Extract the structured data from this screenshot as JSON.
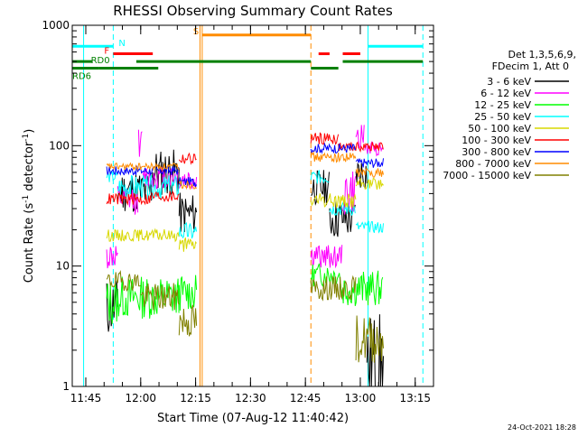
{
  "chart_data": {
    "type": "line",
    "title": "RHESSI Observing Summary Count Rates",
    "xlabel": "Start Time (07-Aug-12 11:40:42)",
    "ylabel_parts": [
      "Count Rate (s",
      "-1",
      " detector",
      "-1",
      ")"
    ],
    "yscale": "log",
    "ylim": [
      1,
      1000
    ],
    "xlim": [
      11.6883,
      13.3333
    ],
    "x_ticks": [
      {
        "t": 11.75,
        "label": "11:45"
      },
      {
        "t": 12.0,
        "label": "12:00"
      },
      {
        "t": 12.25,
        "label": "12:15"
      },
      {
        "t": 12.5,
        "label": "12:30"
      },
      {
        "t": 12.75,
        "label": "12:45"
      },
      {
        "t": 13.0,
        "label": "13:00"
      },
      {
        "t": 13.25,
        "label": "13:15"
      }
    ],
    "y_ticks": [
      {
        "v": 1,
        "label": "1"
      },
      {
        "v": 10,
        "label": "10"
      },
      {
        "v": 100,
        "label": "100"
      },
      {
        "v": 1000,
        "label": "1000"
      }
    ],
    "legend_header": [
      "Det 1,3,5,6,9,",
      "FDecim 1, Att 0"
    ],
    "series": [
      {
        "name": "3 - 6 keV",
        "color": "#000000",
        "seed": 11,
        "segments": [
          {
            "start": 11.845,
            "end": 11.895,
            "level": 4.5,
            "noise": 0.25
          },
          {
            "start": 11.895,
            "end": 12.05,
            "level": 42,
            "noise": 0.18
          },
          {
            "start": 12.05,
            "end": 12.175,
            "level": 60,
            "noise": 0.2
          },
          {
            "start": 12.175,
            "end": 12.255,
            "level": 27,
            "noise": 0.18
          },
          {
            "start": 12.775,
            "end": 12.86,
            "level": 45,
            "noise": 0.15
          },
          {
            "start": 12.86,
            "end": 12.98,
            "level": 25,
            "noise": 0.18
          },
          {
            "start": 12.98,
            "end": 13.03,
            "level": 60,
            "noise": 0.15
          },
          {
            "start": 13.03,
            "end": 13.105,
            "level": 1.5,
            "noise": 0.45
          }
        ]
      },
      {
        "name": "6 - 12 keV",
        "color": "#ff00ff",
        "seed": 12,
        "segments": [
          {
            "start": 11.845,
            "end": 11.895,
            "level": 12,
            "noise": 0.12
          },
          {
            "start": 11.895,
            "end": 11.99,
            "level": 35,
            "noise": 0.12
          },
          {
            "start": 11.99,
            "end": 12.01,
            "level": 105,
            "noise": 0.12
          },
          {
            "start": 12.01,
            "end": 12.175,
            "level": 55,
            "noise": 0.1
          },
          {
            "start": 12.175,
            "end": 12.255,
            "level": 52,
            "noise": 0.1
          },
          {
            "start": 12.775,
            "end": 12.92,
            "level": 12,
            "noise": 0.1
          },
          {
            "start": 12.92,
            "end": 12.98,
            "level": 40,
            "noise": 0.2
          },
          {
            "start": 12.98,
            "end": 13.02,
            "level": 120,
            "noise": 0.1
          },
          {
            "start": 13.02,
            "end": 13.105,
            "level": 95,
            "noise": 0.06
          }
        ]
      },
      {
        "name": "12 - 25 keV",
        "color": "#00ff00",
        "seed": 13,
        "segments": [
          {
            "start": 11.845,
            "end": 11.895,
            "level": 5,
            "noise": 0.2
          },
          {
            "start": 11.895,
            "end": 12.175,
            "level": 5.5,
            "noise": 0.18
          },
          {
            "start": 12.175,
            "end": 12.255,
            "level": 6,
            "noise": 0.15
          },
          {
            "start": 12.775,
            "end": 12.91,
            "level": 8.5,
            "noise": 0.1
          },
          {
            "start": 12.91,
            "end": 13.105,
            "level": 6.5,
            "noise": 0.15
          }
        ]
      },
      {
        "name": "25 - 50 keV",
        "color": "#00ffff",
        "seed": 14,
        "segments": [
          {
            "start": 11.845,
            "end": 11.895,
            "level": 55,
            "noise": 0.05
          },
          {
            "start": 11.895,
            "end": 12.175,
            "level": 45,
            "noise": 0.1
          },
          {
            "start": 12.175,
            "end": 12.255,
            "level": 19,
            "noise": 0.08
          },
          {
            "start": 12.775,
            "end": 12.86,
            "level": 55,
            "noise": 0.06
          },
          {
            "start": 12.86,
            "end": 12.98,
            "level": 30,
            "noise": 0.06
          },
          {
            "start": 12.98,
            "end": 13.105,
            "level": 21,
            "noise": 0.05
          }
        ]
      },
      {
        "name": "50 - 100 keV",
        "color": "#d8d800",
        "seed": 15,
        "segments": [
          {
            "start": 11.845,
            "end": 12.175,
            "level": 18,
            "noise": 0.05
          },
          {
            "start": 12.175,
            "end": 12.255,
            "level": 15,
            "noise": 0.06
          },
          {
            "start": 12.775,
            "end": 12.98,
            "level": 35,
            "noise": 0.06
          },
          {
            "start": 12.98,
            "end": 13.105,
            "level": 48,
            "noise": 0.05
          }
        ]
      },
      {
        "name": "100 - 300 keV",
        "color": "#ff0000",
        "seed": 16,
        "segments": [
          {
            "start": 11.845,
            "end": 12.05,
            "level": 36,
            "noise": 0.05
          },
          {
            "start": 12.05,
            "end": 12.175,
            "level": 38,
            "noise": 0.05
          },
          {
            "start": 12.175,
            "end": 12.255,
            "level": 78,
            "noise": 0.05
          },
          {
            "start": 12.775,
            "end": 12.9,
            "level": 115,
            "noise": 0.05
          },
          {
            "start": 12.9,
            "end": 13.105,
            "level": 98,
            "noise": 0.04
          }
        ]
      },
      {
        "name": "300 - 800 keV",
        "color": "#0000ff",
        "seed": 17,
        "segments": [
          {
            "start": 11.845,
            "end": 12.175,
            "level": 62,
            "noise": 0.04
          },
          {
            "start": 12.175,
            "end": 12.255,
            "level": 50,
            "noise": 0.04
          },
          {
            "start": 12.775,
            "end": 12.98,
            "level": 95,
            "noise": 0.04
          },
          {
            "start": 12.98,
            "end": 13.105,
            "level": 72,
            "noise": 0.04
          }
        ]
      },
      {
        "name": "800 - 7000 keV",
        "color": "#ff8c00",
        "seed": 18,
        "segments": [
          {
            "start": 11.845,
            "end": 12.175,
            "level": 67,
            "noise": 0.03
          },
          {
            "start": 12.175,
            "end": 12.255,
            "level": 48,
            "noise": 0.04
          },
          {
            "start": 12.775,
            "end": 12.98,
            "level": 80,
            "noise": 0.04
          },
          {
            "start": 12.98,
            "end": 13.105,
            "level": 60,
            "noise": 0.04
          }
        ]
      },
      {
        "name": "7000 - 15000 keV",
        "color": "#808000",
        "seed": 19,
        "segments": [
          {
            "start": 11.845,
            "end": 12.0,
            "level": 7.5,
            "noise": 0.08
          },
          {
            "start": 12.0,
            "end": 12.175,
            "level": 5.5,
            "noise": 0.12
          },
          {
            "start": 12.175,
            "end": 12.255,
            "level": 3.5,
            "noise": 0.15
          },
          {
            "start": 12.775,
            "end": 12.98,
            "level": 6.5,
            "noise": 0.1
          },
          {
            "start": 12.98,
            "end": 13.105,
            "level": 2.5,
            "noise": 0.2
          }
        ]
      }
    ],
    "vertical_markers": [
      {
        "t": 11.74,
        "color": "#00ffff",
        "style": "solid"
      },
      {
        "t": 11.875,
        "color": "#00ffff",
        "style": "dashed"
      },
      {
        "t": 12.27,
        "color": "#ff8c00",
        "style": "solid"
      },
      {
        "t": 12.28,
        "color": "#ff8c00",
        "style": "solid"
      },
      {
        "t": 12.775,
        "color": "#ff8c00",
        "style": "dashed"
      },
      {
        "t": 13.035,
        "color": "#00ffff",
        "style": "solid"
      },
      {
        "t": 13.285,
        "color": "#00ffff",
        "style": "dashed"
      }
    ],
    "flag_bars": [
      {
        "label": "N",
        "color": "#00ffff",
        "level": 670,
        "intervals": [
          [
            11.6883,
            11.875
          ],
          [
            13.035,
            13.285
          ]
        ]
      },
      {
        "label": "S",
        "color": "#ff8c00",
        "level": 830,
        "intervals": [
          [
            12.28,
            12.775
          ]
        ]
      },
      {
        "label": "F",
        "color": "#ff0000",
        "level": 580,
        "intervals": [
          [
            11.875,
            12.055
          ],
          [
            12.81,
            12.86
          ],
          [
            12.92,
            13.0
          ]
        ]
      },
      {
        "label": "RD0",
        "color": "#008000",
        "level": 500,
        "intervals": [
          [
            11.6883,
            11.78
          ],
          [
            11.98,
            12.775
          ],
          [
            12.92,
            13.285
          ]
        ]
      },
      {
        "label": "RD6",
        "color": "#008000",
        "level": 440,
        "intervals": [
          [
            11.6883,
            11.74
          ],
          [
            11.74,
            11.81
          ],
          [
            11.81,
            12.08
          ],
          [
            12.775,
            12.9
          ]
        ]
      }
    ],
    "footer_date": "24-Oct-2021 18:28"
  }
}
